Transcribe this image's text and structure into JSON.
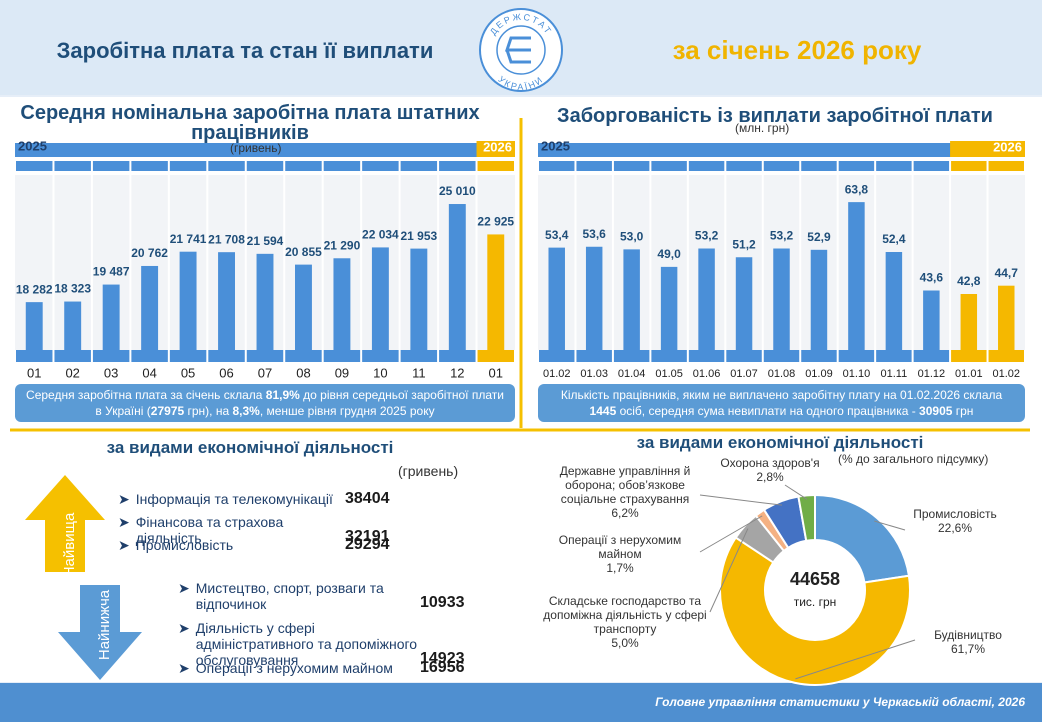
{
  "header": {
    "title": "Заробітна плата та стан її виплати",
    "period": "за січень 2026 року",
    "logo_top": "ДЕРЖСТАТ",
    "logo_bottom": "УКРАЇНИ"
  },
  "chart_data": [
    {
      "type": "bar",
      "title": "Середня номінальна заробітна плата штатних працівників",
      "subtitle": "(гривень)",
      "period_labels": [
        "2025",
        "2026"
      ],
      "categories": [
        "01",
        "02",
        "03",
        "04",
        "05",
        "06",
        "07",
        "08",
        "09",
        "10",
        "11",
        "12",
        "01"
      ],
      "values": [
        18282,
        18323,
        19487,
        20762,
        21741,
        21708,
        21594,
        20855,
        21290,
        22034,
        21953,
        25010,
        22925
      ],
      "value_labels": [
        "18 282",
        "18 323",
        "19 487",
        "20 762",
        "21 741",
        "21 708",
        "21 594",
        "20 855",
        "21 290",
        "22 034",
        "21 953",
        "25 010",
        "22 925"
      ],
      "colors": [
        "#4a8fd8",
        "#4a8fd8",
        "#4a8fd8",
        "#4a8fd8",
        "#4a8fd8",
        "#4a8fd8",
        "#4a8fd8",
        "#4a8fd8",
        "#4a8fd8",
        "#4a8fd8",
        "#4a8fd8",
        "#4a8fd8",
        "#f5b800"
      ],
      "ylim": [
        15000,
        27000
      ],
      "note": [
        "Середня заробітна плата за січень склала ",
        "81,9%",
        " до рівня середньої заробітної плати в Україні (",
        "27975",
        " грн), на ",
        "8,3%",
        ", менше рівня грудня 2025 року"
      ]
    },
    {
      "type": "bar",
      "title": "Заборгованість із виплати заробітної плати",
      "subtitle": "(млн. грн)",
      "period_labels": [
        "2025",
        "2026"
      ],
      "categories": [
        "01.02",
        "01.03",
        "01.04",
        "01.05",
        "01.06",
        "01.07",
        "01.08",
        "01.09",
        "01.10",
        "01.11",
        "01.12",
        "01.01",
        "01.02"
      ],
      "values": [
        53.4,
        53.6,
        53.0,
        49.0,
        53.2,
        51.2,
        53.2,
        52.9,
        63.8,
        52.4,
        43.6,
        42.8,
        44.7
      ],
      "value_labels": [
        "53,4",
        "53,6",
        "53,0",
        "49,0",
        "53,2",
        "51,2",
        "53,2",
        "52,9",
        "63,8",
        "52,4",
        "43,6",
        "42,8",
        "44,7"
      ],
      "colors": [
        "#4a8fd8",
        "#4a8fd8",
        "#4a8fd8",
        "#4a8fd8",
        "#4a8fd8",
        "#4a8fd8",
        "#4a8fd8",
        "#4a8fd8",
        "#4a8fd8",
        "#4a8fd8",
        "#4a8fd8",
        "#f5b800",
        "#f5b800"
      ],
      "ylim": [
        30,
        70
      ],
      "note": [
        "Кількість працівників, яким не виплачено заробітну плату на 01.02.2026 склала ",
        "1445",
        " осіб, середня сума невиплати на одного працівника - ",
        "30905",
        " грн"
      ]
    },
    {
      "type": "donut",
      "title": "за видами економічної діяльності",
      "subtitle": "(% до загального підсумку)",
      "total_value": 44658,
      "total_unit": "тис. грн",
      "categories": [
        "Промисловість",
        "Будівництво",
        "Складське господарство та допоміжна діяльність у сфері транспорту",
        "Операції з нерухомим майном",
        "Державне управління й оборона; обов’язкове соціальне страхування",
        "Охорона здоров'я"
      ],
      "values": [
        22.6,
        61.7,
        5.0,
        1.7,
        6.2,
        2.8
      ],
      "value_labels": [
        "22,6%",
        "61,7%",
        "5,0%",
        "1,7%",
        "6,2%",
        "2,8%"
      ],
      "colors": [
        "#5b9bd5",
        "#f5b800",
        "#a5a5a5",
        "#f4b183",
        "#4472c4",
        "#70ad47"
      ]
    }
  ],
  "ranking": {
    "title": "за видами економічної діяльності",
    "unit": "(гривень)",
    "highest": {
      "label": "Найвища",
      "items": [
        {
          "name": "Інформація та телекомунікації",
          "value": 38404
        },
        {
          "name": "Фінансова та страхова діяльність",
          "value": 32191
        },
        {
          "name": "Промисловість",
          "value": 29294
        }
      ]
    },
    "lowest": {
      "label": "Найнижча",
      "items": [
        {
          "name": "Мистецтво, спорт, розваги та відпочинок",
          "value": 10933
        },
        {
          "name": "Діяльність у сфері адміністративного та допоміжного обслуговування",
          "value": 14923
        },
        {
          "name": "Операції з нерухомим майном",
          "value": 16956
        }
      ]
    }
  },
  "footer": "Головне управління статистики у Черкаській області, 2026"
}
